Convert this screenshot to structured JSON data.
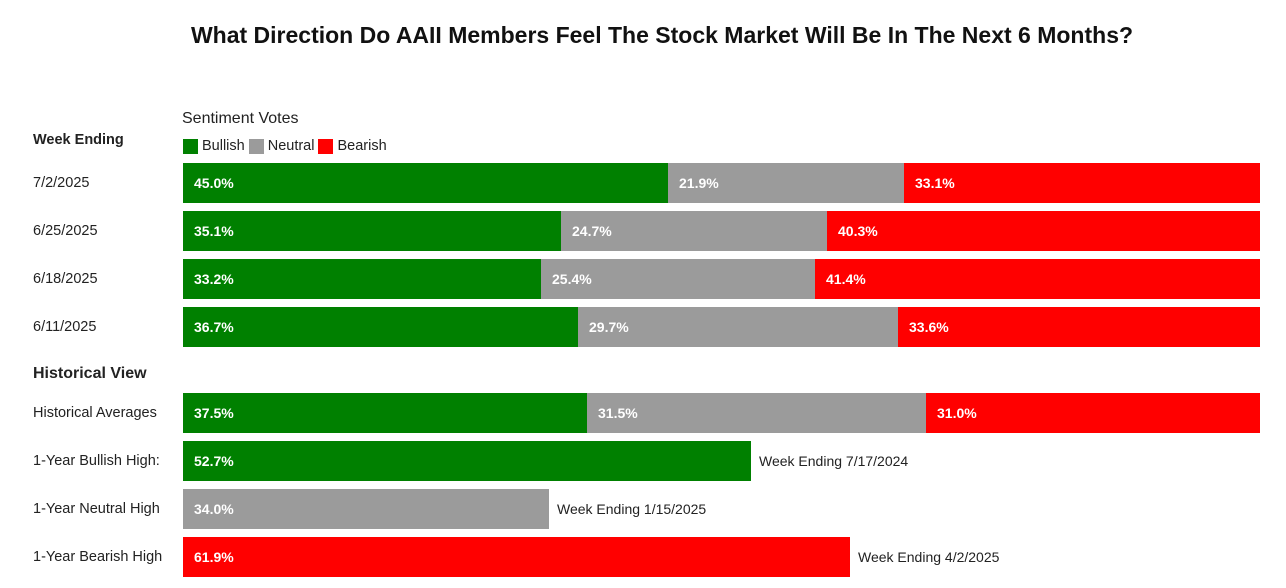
{
  "title": "What Direction Do AAII Members Feel The Stock Market Will Be In The Next 6 Months?",
  "legend": {
    "title": "Sentiment Votes",
    "items": [
      {
        "label": "Bullish",
        "color": "#008000"
      },
      {
        "label": "Neutral",
        "color": "#9b9b9b"
      },
      {
        "label": "Bearish",
        "color": "#ff0000"
      }
    ]
  },
  "week_header": "Week Ending",
  "historical_header": "Historical View",
  "chart_data": {
    "type": "bar",
    "stacked": true,
    "orientation": "horizontal",
    "title": "What Direction Do AAII Members Feel The Stock Market Will Be In The Next 6 Months?",
    "xlim": [
      0,
      100
    ],
    "series_names": [
      "Bullish",
      "Neutral",
      "Bearish"
    ],
    "colors": {
      "Bullish": "#008000",
      "Neutral": "#9b9b9b",
      "Bearish": "#ff0000"
    },
    "weeks": [
      {
        "label": "7/2/2025",
        "values": [
          45.0,
          21.9,
          33.1
        ],
        "labels": [
          "45.0%",
          "21.9%",
          "33.1%"
        ]
      },
      {
        "label": "6/25/2025",
        "values": [
          35.1,
          24.7,
          40.3
        ],
        "labels": [
          "35.1%",
          "24.7%",
          "40.3%"
        ]
      },
      {
        "label": "6/18/2025",
        "values": [
          33.2,
          25.4,
          41.4
        ],
        "labels": [
          "33.2%",
          "25.4%",
          "41.4%"
        ]
      },
      {
        "label": "6/11/2025",
        "values": [
          36.7,
          29.7,
          33.6
        ],
        "labels": [
          "36.7%",
          "29.7%",
          "33.6%"
        ]
      }
    ],
    "historical": [
      {
        "label": "Historical Averages",
        "values": [
          37.5,
          31.5,
          31.0
        ],
        "labels": [
          "37.5%",
          "31.5%",
          "31.0%"
        ]
      }
    ],
    "highs": [
      {
        "label": "1-Year Bullish High:",
        "series": "Bullish",
        "value": 52.7,
        "value_label": "52.7%",
        "note": "Week Ending 7/17/2024"
      },
      {
        "label": "1-Year Neutral High",
        "series": "Neutral",
        "value": 34.0,
        "value_label": "34.0%",
        "note": "Week Ending 1/15/2025"
      },
      {
        "label": "1-Year Bearish High",
        "series": "Bearish",
        "value": 61.9,
        "value_label": "61.9%",
        "note": "Week Ending 4/2/2025"
      }
    ]
  }
}
